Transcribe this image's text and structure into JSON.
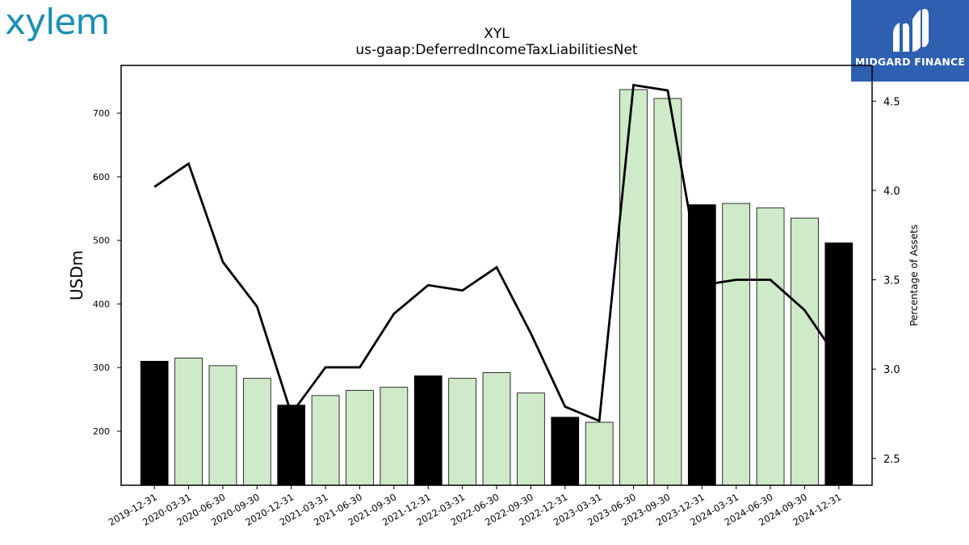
{
  "logo": {
    "text": "xylem"
  },
  "brand": {
    "name": "MIDGARD FINANCE",
    "color": "#2e5fb0"
  },
  "chart_data": {
    "type": "bar",
    "title": "XYL",
    "subtitle": "us-gaap:DeferredIncomeTaxLiabilitiesNet",
    "ylabel": "USDm",
    "y2label": "Percentage of Assets",
    "ylim": [
      115,
      775
    ],
    "y2lim": [
      2.35,
      4.7
    ],
    "yticks": [
      200,
      300,
      400,
      500,
      600,
      700
    ],
    "y2ticks": [
      2.5,
      3.0,
      3.5,
      4.0,
      4.5
    ],
    "categories": [
      "2019-12-31",
      "2020-03-31",
      "2020-06-30",
      "2020-09-30",
      "2020-12-31",
      "2021-03-31",
      "2021-06-30",
      "2021-09-30",
      "2021-12-31",
      "2022-03-31",
      "2022-06-30",
      "2022-09-30",
      "2022-12-31",
      "2023-03-31",
      "2023-06-30",
      "2023-09-30",
      "2023-12-31",
      "2024-03-31",
      "2024-06-30",
      "2024-09-30",
      "2024-12-31"
    ],
    "series": [
      {
        "type": "bar",
        "axis": "left",
        "values": [
          310,
          315,
          303,
          283,
          241,
          256,
          264,
          269,
          287,
          283,
          292,
          260,
          222,
          214,
          737,
          723,
          556,
          558,
          551,
          535,
          496
        ],
        "fiscal_year_end": [
          true,
          false,
          false,
          false,
          true,
          false,
          false,
          false,
          true,
          false,
          false,
          false,
          true,
          false,
          false,
          false,
          true,
          false,
          false,
          false,
          true
        ]
      },
      {
        "type": "line",
        "axis": "right",
        "values": [
          4.02,
          4.15,
          3.6,
          3.35,
          2.75,
          3.01,
          3.01,
          3.31,
          3.47,
          3.44,
          3.57,
          3.2,
          2.79,
          2.71,
          4.59,
          4.56,
          3.47,
          3.5,
          3.5,
          3.33,
          3.05
        ]
      }
    ],
    "colors": {
      "annual_bar": "#000000",
      "quarter_bar": "#cfeac8",
      "line": "#000000"
    }
  }
}
